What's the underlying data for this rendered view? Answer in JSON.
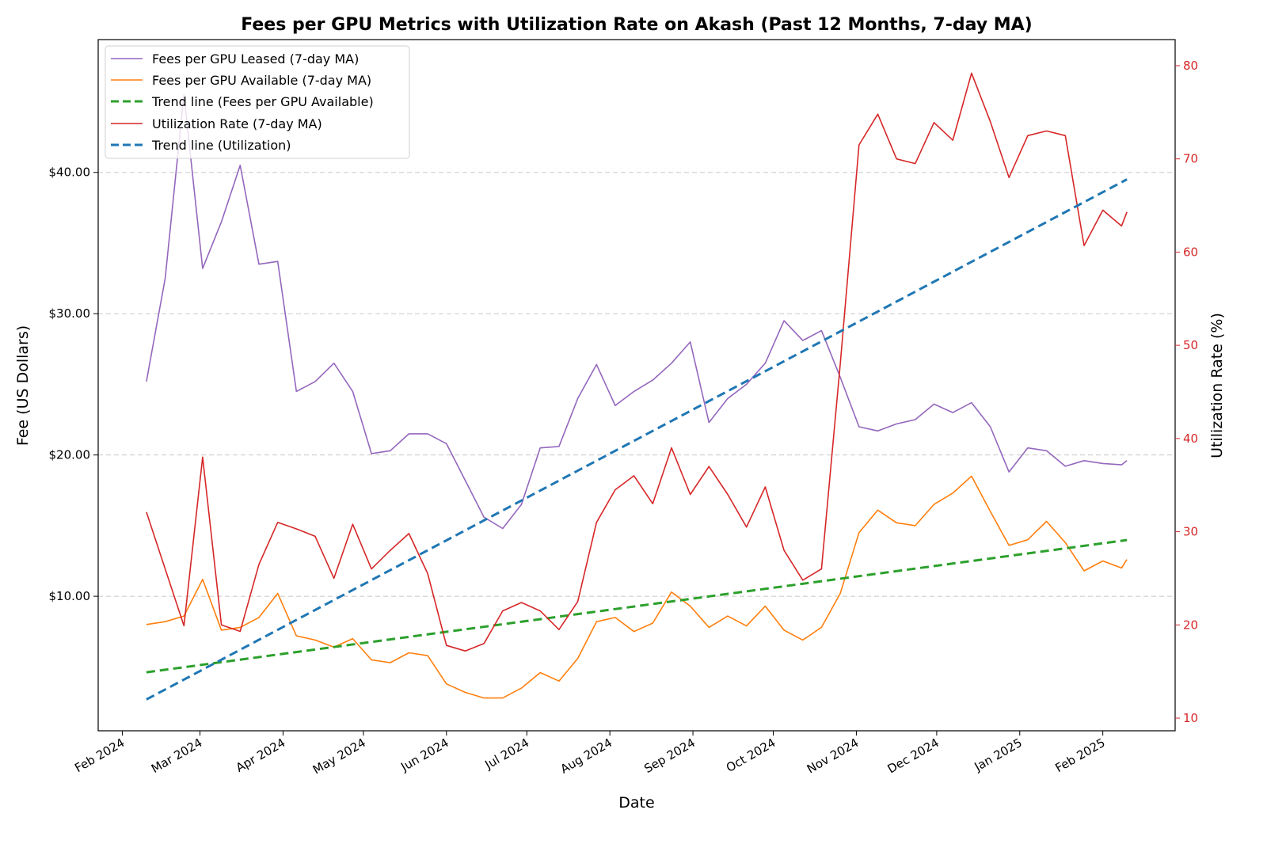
{
  "chart_data": {
    "type": "line",
    "title": "Fees per GPU Metrics with Utilization Rate on Akash (Past 12 Months, 7-day MA)",
    "xlabel": "Date",
    "ylabel": "Fee (US Dollars)",
    "ylabel_right": "Utilization Rate (%)",
    "xlim": [
      "2024-01-23",
      "2025-02-28"
    ],
    "ylim": [
      0.48,
      49.4
    ],
    "ylim_right": [
      8.64,
      82.8
    ],
    "grid": "horizontal dashed at left-axis ticks",
    "legend_position": "top-left",
    "x_ticks": [
      {
        "date": "2024-02-01",
        "label": "Feb 2024"
      },
      {
        "date": "2024-03-01",
        "label": "Mar 2024"
      },
      {
        "date": "2024-04-01",
        "label": "Apr 2024"
      },
      {
        "date": "2024-05-01",
        "label": "May 2024"
      },
      {
        "date": "2024-06-01",
        "label": "Jun 2024"
      },
      {
        "date": "2024-07-01",
        "label": "Jul 2024"
      },
      {
        "date": "2024-08-01",
        "label": "Aug 2024"
      },
      {
        "date": "2024-09-01",
        "label": "Sep 2024"
      },
      {
        "date": "2024-10-01",
        "label": "Oct 2024"
      },
      {
        "date": "2024-11-01",
        "label": "Nov 2024"
      },
      {
        "date": "2024-12-01",
        "label": "Dec 2024"
      },
      {
        "date": "2025-01-01",
        "label": "Jan 2025"
      },
      {
        "date": "2025-02-01",
        "label": "Feb 2025"
      }
    ],
    "y_ticks": [
      {
        "value": 10,
        "label": "$10.00"
      },
      {
        "value": 20,
        "label": "$20.00"
      },
      {
        "value": 30,
        "label": "$30.00"
      },
      {
        "value": 40,
        "label": "$40.00"
      }
    ],
    "y_ticks_right": [
      10,
      20,
      30,
      40,
      50,
      60,
      70,
      80
    ],
    "x": [
      "2024-02-10",
      "2024-02-17",
      "2024-02-24",
      "2024-03-02",
      "2024-03-09",
      "2024-03-16",
      "2024-03-23",
      "2024-03-30",
      "2024-04-06",
      "2024-04-13",
      "2024-04-20",
      "2024-04-27",
      "2024-05-04",
      "2024-05-11",
      "2024-05-18",
      "2024-05-25",
      "2024-06-01",
      "2024-06-08",
      "2024-06-15",
      "2024-06-22",
      "2024-06-29",
      "2024-07-06",
      "2024-07-13",
      "2024-07-20",
      "2024-07-27",
      "2024-08-03",
      "2024-08-10",
      "2024-08-17",
      "2024-08-24",
      "2024-08-31",
      "2024-09-07",
      "2024-09-14",
      "2024-09-21",
      "2024-09-28",
      "2024-10-05",
      "2024-10-12",
      "2024-10-19",
      "2024-10-26",
      "2024-11-02",
      "2024-11-09",
      "2024-11-16",
      "2024-11-23",
      "2024-11-30",
      "2024-12-07",
      "2024-12-14",
      "2024-12-21",
      "2024-12-28",
      "2025-01-04",
      "2025-01-11",
      "2025-01-18",
      "2025-01-25",
      "2025-02-01",
      "2025-02-08",
      "2025-02-10"
    ],
    "series": [
      {
        "name": "Fees per GPU Leased (7-day MA)",
        "axis": "left",
        "style": "solid",
        "color": "#9467bd",
        "values": [
          25.2,
          32.5,
          45.5,
          33.2,
          36.5,
          40.5,
          33.5,
          33.7,
          24.5,
          25.2,
          26.5,
          24.5,
          20.1,
          20.3,
          21.5,
          21.5,
          20.8,
          18.2,
          15.6,
          14.8,
          16.5,
          20.5,
          20.6,
          24.0,
          26.4,
          23.5,
          24.5,
          25.3,
          26.5,
          28.0,
          22.3,
          24.0,
          25.0,
          26.5,
          29.5,
          28.1,
          28.8,
          25.5,
          22.0,
          21.7,
          22.2,
          22.5,
          23.6,
          23.0,
          23.7,
          22.0,
          18.8,
          20.5,
          20.3,
          19.2,
          19.6,
          19.4,
          19.3,
          19.6
        ]
      },
      {
        "name": "Fees per GPU Available (7-day MA)",
        "axis": "left",
        "style": "solid",
        "color": "#ff7f0e",
        "values": [
          8.0,
          8.2,
          8.6,
          11.2,
          7.6,
          7.8,
          8.5,
          10.2,
          7.2,
          6.9,
          6.4,
          7.0,
          5.5,
          5.3,
          6.0,
          5.8,
          3.8,
          3.2,
          2.8,
          2.8,
          3.5,
          4.6,
          4.0,
          5.6,
          8.2,
          8.5,
          7.5,
          8.1,
          10.3,
          9.3,
          7.8,
          8.6,
          7.9,
          9.3,
          7.6,
          6.9,
          7.8,
          10.2,
          14.5,
          16.1,
          15.2,
          15.0,
          16.5,
          17.3,
          18.5,
          16.0,
          13.6,
          14.0,
          15.3,
          13.8,
          11.8,
          12.5,
          12.0,
          12.6
        ]
      },
      {
        "name": "Trend line (Fees per GPU Available)",
        "axis": "left",
        "style": "dashed",
        "color": "#2ca02c",
        "start": {
          "date": "2024-02-10",
          "value": 4.62
        },
        "end": {
          "date": "2025-02-10",
          "value": 13.98
        }
      },
      {
        "name": "Utilization Rate (7-day MA)",
        "axis": "right",
        "style": "solid",
        "color": "#d62728",
        "values": [
          32.1,
          26.0,
          19.9,
          38.0,
          20.0,
          19.3,
          26.5,
          31.0,
          30.3,
          29.5,
          25.0,
          30.8,
          26.0,
          28.0,
          29.8,
          25.5,
          17.8,
          17.2,
          18.0,
          21.5,
          22.4,
          21.5,
          19.5,
          22.5,
          31.0,
          34.5,
          36.0,
          33.0,
          39.0,
          34.0,
          37.0,
          34.0,
          30.5,
          34.8,
          28.0,
          24.8,
          26.0,
          48.0,
          71.5,
          74.8,
          70.0,
          69.5,
          73.9,
          72.0,
          79.2,
          74.0,
          68.0,
          72.5,
          73.0,
          72.5,
          60.7,
          64.5,
          62.8,
          64.3
        ]
      },
      {
        "name": "Trend line (Utilization)",
        "axis": "right",
        "style": "dashed",
        "color": "#1f77b4",
        "start": {
          "date": "2024-02-10",
          "value": 12.0
        },
        "end": {
          "date": "2025-02-10",
          "value": 67.8
        }
      }
    ]
  }
}
